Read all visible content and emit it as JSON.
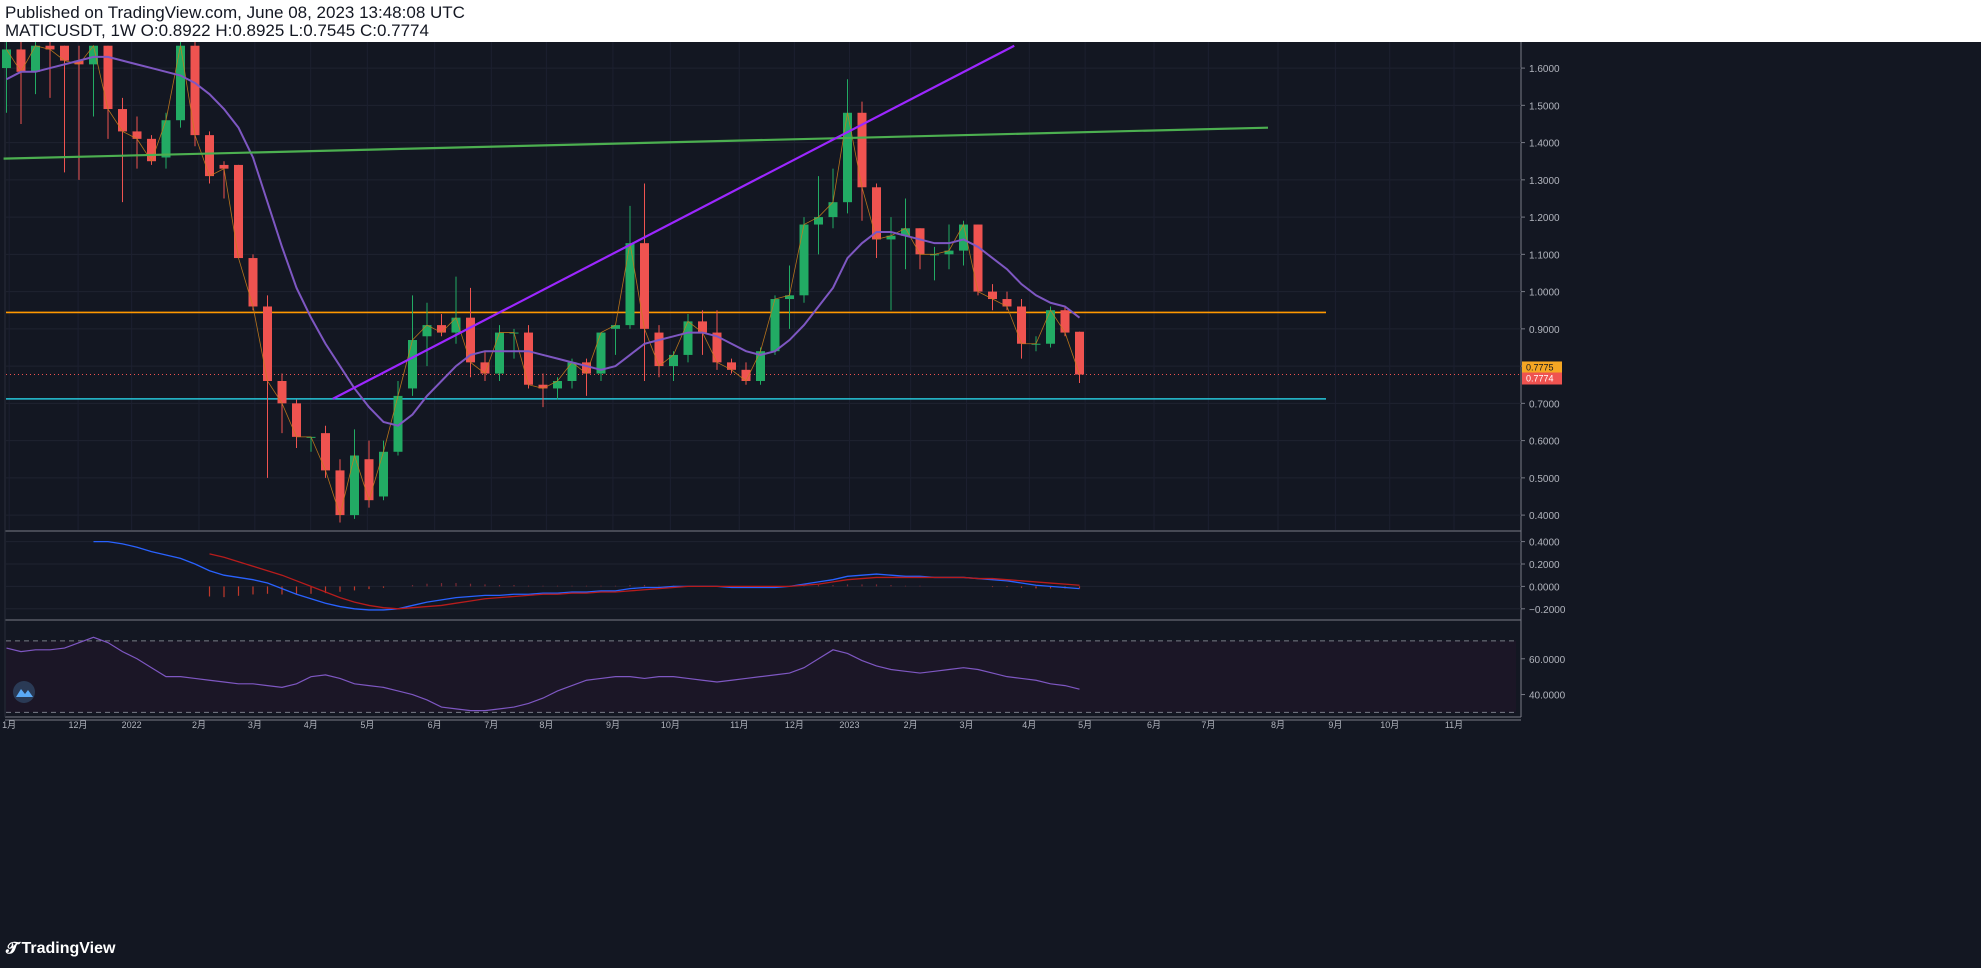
{
  "header": {
    "published": "Published on TradingView.com, June 08, 2023 13:48:08 UTC",
    "symbol_line": "MATICUSDT, 1W O:0.8922 H:0.8925 L:0.7545 C:0.7774"
  },
  "footer": {
    "brand": "TradingView"
  },
  "colors": {
    "background": "#131722",
    "up": "#26a69a",
    "up_bright": "#22ab64",
    "down": "#ef5350",
    "ma": "#7e57c2",
    "purple_trend": "#9c27ff",
    "green_trend": "#4caf50",
    "orange_level": "#ff9800",
    "cyan_level": "#26c6da",
    "price_tag": "#ef5350",
    "prev_tag": "#f5a623"
  },
  "chart_data": [
    {
      "type": "candlestick",
      "title": "MATICUSDT, 1W",
      "ylim": [
        0.36,
        1.67
      ],
      "y_ticks": [
        "1.6000",
        "1.5000",
        "1.4000",
        "1.3000",
        "1.2000",
        "1.1000",
        "1.0000",
        "0.9000",
        "0.8000",
        "0.7000",
        "0.6000",
        "0.5000",
        "0.4000"
      ],
      "x_ticks": [
        "1月",
        "12月",
        "2022",
        "2月",
        "3月",
        "4月",
        "5月",
        "6月",
        "7月",
        "8月",
        "9月",
        "10月",
        "11月",
        "12月",
        "2023",
        "2月",
        "3月",
        "4月",
        "5月",
        "6月",
        "7月",
        "8月",
        "9月",
        "10月",
        "11月"
      ],
      "price_labels": {
        "previous": "0.7775",
        "last": "0.7774"
      },
      "candles": [
        {
          "o": 1.6,
          "h": 1.67,
          "c": 1.65,
          "l": 1.48
        },
        {
          "o": 1.65,
          "h": 1.67,
          "c": 1.59,
          "l": 1.45
        },
        {
          "o": 1.59,
          "h": 1.68,
          "c": 1.66,
          "l": 1.53
        },
        {
          "o": 1.66,
          "h": 1.67,
          "c": 1.65,
          "l": 1.52
        },
        {
          "o": 1.66,
          "h": 1.66,
          "c": 1.62,
          "l": 1.32
        },
        {
          "o": 1.62,
          "h": 1.66,
          "c": 1.61,
          "l": 1.3
        },
        {
          "o": 1.61,
          "h": 1.66,
          "c": 1.66,
          "l": 1.47
        },
        {
          "o": 1.66,
          "h": 1.66,
          "c": 1.49,
          "l": 1.41
        },
        {
          "o": 1.49,
          "h": 1.52,
          "c": 1.43,
          "l": 1.24
        },
        {
          "o": 1.43,
          "h": 1.47,
          "c": 1.41,
          "l": 1.33
        },
        {
          "o": 1.41,
          "h": 1.42,
          "c": 1.35,
          "l": 1.34
        },
        {
          "o": 1.36,
          "h": 1.48,
          "c": 1.46,
          "l": 1.33
        },
        {
          "o": 1.46,
          "h": 1.7,
          "c": 1.66,
          "l": 1.44
        },
        {
          "o": 1.66,
          "h": 1.67,
          "c": 1.42,
          "l": 1.39
        },
        {
          "o": 1.42,
          "h": 1.43,
          "c": 1.31,
          "l": 1.29
        },
        {
          "o": 1.34,
          "h": 1.35,
          "c": 1.33,
          "l": 1.25
        },
        {
          "o": 1.34,
          "h": 1.34,
          "c": 1.09,
          "l": 1.09
        },
        {
          "o": 1.09,
          "h": 1.1,
          "c": 0.96,
          "l": 0.95
        },
        {
          "o": 0.96,
          "h": 0.99,
          "c": 0.76,
          "l": 0.5
        },
        {
          "o": 0.76,
          "h": 0.78,
          "c": 0.7,
          "l": 0.62
        },
        {
          "o": 0.7,
          "h": 0.71,
          "c": 0.61,
          "l": 0.58
        },
        {
          "o": 0.61,
          "h": 0.61,
          "c": 0.61,
          "l": 0.57
        },
        {
          "o": 0.62,
          "h": 0.64,
          "c": 0.52,
          "l": 0.5
        },
        {
          "o": 0.52,
          "h": 0.55,
          "c": 0.4,
          "l": 0.38
        },
        {
          "o": 0.4,
          "h": 0.63,
          "c": 0.56,
          "l": 0.39
        },
        {
          "o": 0.55,
          "h": 0.6,
          "c": 0.44,
          "l": 0.42
        },
        {
          "o": 0.45,
          "h": 0.6,
          "c": 0.57,
          "l": 0.44
        },
        {
          "o": 0.57,
          "h": 0.76,
          "c": 0.72,
          "l": 0.56
        },
        {
          "o": 0.74,
          "h": 0.99,
          "c": 0.87,
          "l": 0.72
        },
        {
          "o": 0.88,
          "h": 0.97,
          "c": 0.91,
          "l": 0.8
        },
        {
          "o": 0.91,
          "h": 0.94,
          "c": 0.89,
          "l": 0.88
        },
        {
          "o": 0.89,
          "h": 1.04,
          "c": 0.93,
          "l": 0.86
        },
        {
          "o": 0.93,
          "h": 1.01,
          "c": 0.81,
          "l": 0.77
        },
        {
          "o": 0.81,
          "h": 0.84,
          "c": 0.78,
          "l": 0.76
        },
        {
          "o": 0.78,
          "h": 0.91,
          "c": 0.89,
          "l": 0.76
        },
        {
          "o": 0.89,
          "h": 0.9,
          "c": 0.89,
          "l": 0.82
        },
        {
          "o": 0.89,
          "h": 0.91,
          "c": 0.75,
          "l": 0.74
        },
        {
          "o": 0.75,
          "h": 0.78,
          "c": 0.74,
          "l": 0.69
        },
        {
          "o": 0.74,
          "h": 0.77,
          "c": 0.76,
          "l": 0.71
        },
        {
          "o": 0.76,
          "h": 0.82,
          "c": 0.81,
          "l": 0.74
        },
        {
          "o": 0.81,
          "h": 0.82,
          "c": 0.78,
          "l": 0.72
        },
        {
          "o": 0.78,
          "h": 0.88,
          "c": 0.89,
          "l": 0.76
        },
        {
          "o": 0.9,
          "h": 0.9,
          "c": 0.91,
          "l": 0.83
        },
        {
          "o": 0.91,
          "h": 1.23,
          "c": 1.13,
          "l": 0.9
        },
        {
          "o": 1.13,
          "h": 1.29,
          "c": 0.9,
          "l": 0.76
        },
        {
          "o": 0.89,
          "h": 0.91,
          "c": 0.8,
          "l": 0.77
        },
        {
          "o": 0.8,
          "h": 0.84,
          "c": 0.83,
          "l": 0.76
        },
        {
          "o": 0.83,
          "h": 0.94,
          "c": 0.92,
          "l": 0.81
        },
        {
          "o": 0.92,
          "h": 0.95,
          "c": 0.89,
          "l": 0.83
        },
        {
          "o": 0.89,
          "h": 0.95,
          "c": 0.81,
          "l": 0.79
        },
        {
          "o": 0.81,
          "h": 0.82,
          "c": 0.79,
          "l": 0.78
        },
        {
          "o": 0.79,
          "h": 0.81,
          "c": 0.76,
          "l": 0.75
        },
        {
          "o": 0.76,
          "h": 0.85,
          "c": 0.84,
          "l": 0.75
        },
        {
          "o": 0.84,
          "h": 0.99,
          "c": 0.98,
          "l": 0.83
        },
        {
          "o": 0.98,
          "h": 1.07,
          "c": 0.99,
          "l": 0.9
        },
        {
          "o": 0.99,
          "h": 1.2,
          "c": 1.18,
          "l": 0.97
        },
        {
          "o": 1.18,
          "h": 1.31,
          "c": 1.2,
          "l": 1.1
        },
        {
          "o": 1.2,
          "h": 1.33,
          "c": 1.24,
          "l": 1.17
        },
        {
          "o": 1.24,
          "h": 1.57,
          "c": 1.48,
          "l": 1.21
        },
        {
          "o": 1.48,
          "h": 1.51,
          "c": 1.28,
          "l": 1.19
        },
        {
          "o": 1.28,
          "h": 1.29,
          "c": 1.14,
          "l": 1.09
        },
        {
          "o": 1.14,
          "h": 1.2,
          "c": 1.15,
          "l": 0.95
        },
        {
          "o": 1.15,
          "h": 1.25,
          "c": 1.17,
          "l": 1.06
        },
        {
          "o": 1.17,
          "h": 1.17,
          "c": 1.1,
          "l": 1.06
        },
        {
          "o": 1.1,
          "h": 1.12,
          "c": 1.1,
          "l": 1.03
        },
        {
          "o": 1.1,
          "h": 1.18,
          "c": 1.11,
          "l": 1.06
        },
        {
          "o": 1.11,
          "h": 1.19,
          "c": 1.18,
          "l": 1.07
        },
        {
          "o": 1.18,
          "h": 1.18,
          "c": 1.0,
          "l": 0.99
        },
        {
          "o": 1.0,
          "h": 1.02,
          "c": 0.98,
          "l": 0.95
        },
        {
          "o": 0.98,
          "h": 1.0,
          "c": 0.96,
          "l": 0.95
        },
        {
          "o": 0.96,
          "h": 0.98,
          "c": 0.86,
          "l": 0.82
        },
        {
          "o": 0.86,
          "h": 0.88,
          "c": 0.86,
          "l": 0.84
        },
        {
          "o": 0.86,
          "h": 0.96,
          "c": 0.95,
          "l": 0.85
        },
        {
          "o": 0.95,
          "h": 0.96,
          "c": 0.89,
          "l": 0.88
        },
        {
          "o": 0.8922,
          "h": 0.8925,
          "c": 0.7774,
          "l": 0.7545
        }
      ],
      "ma_line": [
        1.57,
        1.59,
        1.59,
        1.6,
        1.61,
        1.62,
        1.63,
        1.63,
        1.62,
        1.61,
        1.6,
        1.59,
        1.58,
        1.56,
        1.53,
        1.49,
        1.44,
        1.36,
        1.24,
        1.12,
        1.01,
        0.93,
        0.86,
        0.8,
        0.74,
        0.69,
        0.65,
        0.64,
        0.67,
        0.72,
        0.76,
        0.8,
        0.83,
        0.84,
        0.84,
        0.84,
        0.84,
        0.83,
        0.82,
        0.81,
        0.8,
        0.79,
        0.8,
        0.83,
        0.86,
        0.87,
        0.88,
        0.89,
        0.89,
        0.88,
        0.86,
        0.84,
        0.83,
        0.84,
        0.87,
        0.91,
        0.96,
        1.01,
        1.09,
        1.13,
        1.16,
        1.16,
        1.15,
        1.14,
        1.13,
        1.13,
        1.14,
        1.12,
        1.09,
        1.06,
        1.02,
        0.99,
        0.97,
        0.96,
        0.93
      ],
      "ma_start_index": 0,
      "levels": [
        {
          "name": "orange-level",
          "price": 0.944,
          "to_index": 91
        },
        {
          "name": "cyan-level",
          "price": 0.712,
          "to_index": 91
        }
      ],
      "trendlines": [
        {
          "name": "green-trendline",
          "from": {
            "i": -0.2,
            "p": 1.357
          },
          "to": {
            "i": 87,
            "p": 1.44
          }
        },
        {
          "name": "purple-trendline",
          "from": {
            "i": 22.5,
            "p": 0.712
          },
          "to": {
            "i": 69.5,
            "p": 1.66
          }
        }
      ]
    },
    {
      "type": "line",
      "title": "MACD",
      "ylim": [
        -0.3,
        0.45
      ],
      "y_ticks": [
        "0.4000",
        "0.2000",
        "0.0000",
        "−0.2000"
      ],
      "series": [
        {
          "color": "#2962ff",
          "values": [
            null,
            null,
            null,
            null,
            null,
            null,
            0.4,
            0.4,
            0.38,
            0.35,
            0.31,
            0.28,
            0.25,
            0.2,
            0.14,
            0.1,
            0.08,
            0.06,
            0.03,
            -0.02,
            -0.07,
            -0.11,
            -0.15,
            -0.18,
            -0.2,
            -0.21,
            -0.21,
            -0.2,
            -0.17,
            -0.14,
            -0.12,
            -0.1,
            -0.09,
            -0.08,
            -0.08,
            -0.07,
            -0.07,
            -0.06,
            -0.06,
            -0.05,
            -0.05,
            -0.04,
            -0.04,
            -0.02,
            -0.01,
            -0.01,
            0.0,
            0.0,
            0.0,
            0.0,
            -0.01,
            -0.01,
            -0.01,
            -0.01,
            0.0,
            0.02,
            0.04,
            0.06,
            0.09,
            0.1,
            0.11,
            0.1,
            0.09,
            0.09,
            0.08,
            0.08,
            0.08,
            0.07,
            0.06,
            0.05,
            0.03,
            0.01,
            0.0,
            -0.01,
            -0.02
          ]
        },
        {
          "color": "#b71c1c",
          "values": [
            null,
            null,
            null,
            null,
            null,
            null,
            null,
            null,
            null,
            null,
            null,
            null,
            null,
            null,
            0.29,
            0.26,
            0.22,
            0.18,
            0.14,
            0.1,
            0.05,
            0.0,
            -0.05,
            -0.1,
            -0.14,
            -0.17,
            -0.19,
            -0.2,
            -0.19,
            -0.18,
            -0.17,
            -0.15,
            -0.13,
            -0.11,
            -0.1,
            -0.09,
            -0.08,
            -0.07,
            -0.07,
            -0.06,
            -0.06,
            -0.05,
            -0.05,
            -0.04,
            -0.03,
            -0.02,
            -0.01,
            0.0,
            0.0,
            0.0,
            0.0,
            0.0,
            0.0,
            0.0,
            0.0,
            0.01,
            0.02,
            0.04,
            0.06,
            0.07,
            0.08,
            0.08,
            0.08,
            0.08,
            0.08,
            0.08,
            0.08,
            0.07,
            0.07,
            0.06,
            0.05,
            0.04,
            0.03,
            0.02,
            0.01
          ]
        }
      ]
    },
    {
      "type": "line",
      "title": "RSI",
      "ylim": [
        28,
        80
      ],
      "y_ticks": [
        "60.0000",
        "40.0000"
      ],
      "bands": [
        70,
        30
      ],
      "series": [
        {
          "color": "#7e57c2",
          "values": [
            66,
            64,
            65,
            65,
            66,
            69,
            72,
            69,
            64,
            60,
            55,
            50,
            50,
            49,
            48,
            47,
            46,
            46,
            45,
            44,
            46,
            50,
            51,
            49,
            46,
            45,
            44,
            42,
            40,
            37,
            33,
            32,
            31,
            31,
            32,
            33,
            35,
            38,
            42,
            45,
            48,
            49,
            50,
            50,
            49,
            50,
            50,
            49,
            48,
            47,
            48,
            49,
            50,
            51,
            52,
            55,
            60,
            65,
            63,
            59,
            56,
            54,
            53,
            52,
            53,
            54,
            55,
            54,
            52,
            50,
            49,
            48,
            46,
            45,
            43
          ]
        }
      ]
    }
  ]
}
